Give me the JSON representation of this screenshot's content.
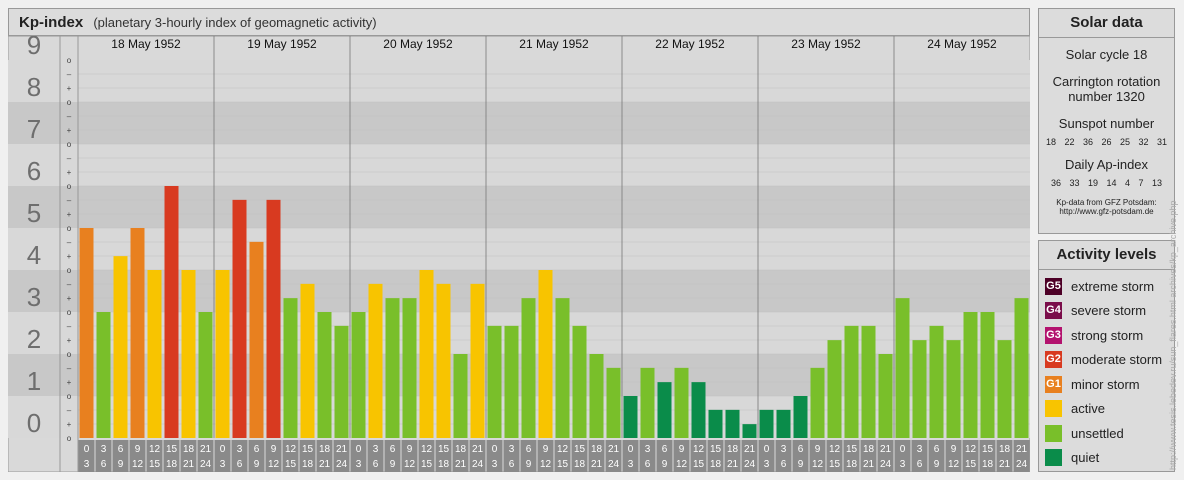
{
  "header": {
    "title": "Kp-index",
    "subtitle": "(planetary 3-hourly index of geomagnetic activity)"
  },
  "solar": {
    "title": "Solar data",
    "cycle": "Solar cycle 18",
    "carrington_line1": "Carrington rotation",
    "carrington_line2": "number 1320",
    "sunspot_label": "Sunspot number",
    "sunspot_values": "18 22 36 26 25 32 31",
    "ap_label": "Daily Ap-index",
    "ap_values": "36 33 19 14 4 7 13",
    "source_line1": "Kp-data from GFZ Potsdam:",
    "source_line2": "http://www.gfz-potsdam.de"
  },
  "legend": {
    "title": "Activity levels",
    "items": [
      {
        "code": "G5",
        "label": "extreme storm",
        "color": "#4d0026"
      },
      {
        "code": "G4",
        "label": "severe storm",
        "color": "#7a0d4a"
      },
      {
        "code": "G3",
        "label": "strong storm",
        "color": "#b3126e"
      },
      {
        "code": "G2",
        "label": "moderate storm",
        "color": "#d83a20"
      },
      {
        "code": "G1",
        "label": "minor storm",
        "color": "#e8801f"
      },
      {
        "code": "",
        "label": "active",
        "color": "#f8c400"
      },
      {
        "code": "",
        "label": "unsettled",
        "color": "#79bf2a"
      },
      {
        "code": "",
        "label": "quiet",
        "color": "#0a8c4a"
      }
    ]
  },
  "watermark": "http://www.tesis.lebedev.ru/sun_flares.html archives/kp_archive.php",
  "chart_data": {
    "type": "bar",
    "ylim": [
      0,
      9
    ],
    "y_ticks": [
      "0",
      "1",
      "2",
      "3",
      "4",
      "5",
      "6",
      "7",
      "8",
      "9"
    ],
    "minor_marks": [
      "o",
      "+",
      "–",
      "o",
      "+",
      "–",
      "o",
      "+",
      "–",
      "o",
      "+",
      "–",
      "o",
      "+",
      "–",
      "o",
      "+",
      "–",
      "o",
      "+",
      "–",
      "o",
      "+",
      "–",
      "o",
      "+",
      "–",
      "o"
    ],
    "days": [
      "18 May 1952",
      "19 May 1952",
      "20 May 1952",
      "21 May 1952",
      "22 May 1952",
      "23 May 1952",
      "24 May 1952"
    ],
    "interval_starts": [
      "0",
      "3",
      "6",
      "9",
      "12",
      "15",
      "18",
      "21"
    ],
    "interval_ends": [
      "3",
      "6",
      "9",
      "12",
      "15",
      "18",
      "21",
      "24"
    ],
    "values": [
      [
        5.0,
        3.0,
        4.33,
        5.0,
        4.0,
        6.0,
        4.0,
        3.0
      ],
      [
        4.0,
        5.67,
        4.67,
        5.67,
        3.33,
        3.67,
        3.0,
        2.67
      ],
      [
        3.0,
        3.67,
        3.33,
        3.33,
        4.0,
        3.67,
        2.0,
        3.67
      ],
      [
        2.67,
        2.67,
        3.33,
        4.0,
        3.33,
        2.67,
        2.0,
        1.67
      ],
      [
        1.0,
        1.67,
        1.33,
        1.67,
        1.33,
        0.67,
        0.67,
        0.33
      ],
      [
        0.67,
        0.67,
        1.0,
        1.67,
        2.33,
        2.67,
        2.67,
        2.0
      ],
      [
        3.33,
        2.33,
        2.67,
        2.33,
        3.0,
        3.0,
        2.33,
        3.33
      ]
    ],
    "level_colors": {
      "quiet": "#0a8c4a",
      "unsettled": "#79bf2a",
      "active": "#f8c400",
      "G1": "#e8801f",
      "G2": "#d83a20",
      "G3": "#b3126e"
    },
    "xlabel": "",
    "ylabel": ""
  }
}
